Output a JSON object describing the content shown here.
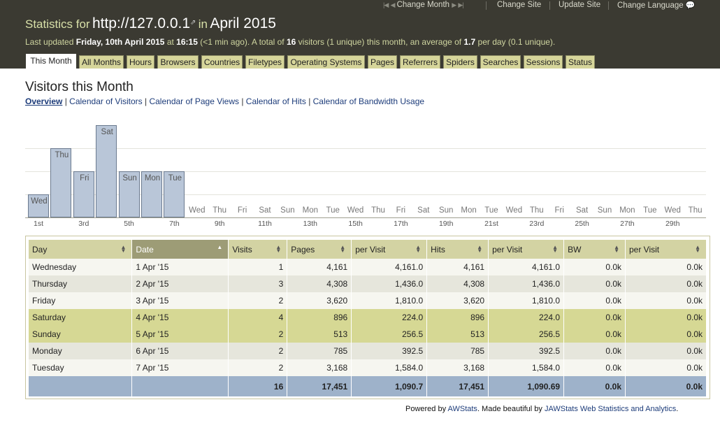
{
  "topmenu": {
    "change_month": "Change Month",
    "change_site": "Change Site",
    "update_site": "Update Site",
    "change_language": "Change Language"
  },
  "title": {
    "prefix": "Statistics for",
    "site": "http://127.0.0.1",
    "middle": "in",
    "period": "April 2015"
  },
  "update": {
    "t1": "Last updated",
    "date": "Friday, 10th April 2015",
    "t2": "at",
    "time": "16:15",
    "t3": "(<1 min ago). A total of",
    "visitors": "16",
    "t4": "visitors (1 unique) this month, an average of",
    "avg": "1.7",
    "t5": "per day (0.1 unique)."
  },
  "tabs": [
    "This Month",
    "All Months",
    "Hours",
    "Browsers",
    "Countries",
    "Filetypes",
    "Operating Systems",
    "Pages",
    "Referrers",
    "Spiders",
    "Searches",
    "Sessions",
    "Status"
  ],
  "section": {
    "title": "Visitors this Month",
    "nav": [
      "Overview",
      "Calendar of Visitors",
      "Calendar of Page Views",
      "Calendar of Hits",
      "Calendar of Bandwidth Usage"
    ]
  },
  "chart_data": {
    "type": "bar",
    "categories": [
      "Wed",
      "Thu",
      "Fri",
      "Sat",
      "Sun",
      "Mon",
      "Tue",
      "Wed",
      "Thu",
      "Fri",
      "Sat",
      "Sun",
      "Mon",
      "Tue",
      "Wed",
      "Thu",
      "Fri",
      "Sat",
      "Sun",
      "Mon",
      "Tue",
      "Wed",
      "Thu",
      "Fri",
      "Sat",
      "Sun",
      "Mon",
      "Tue",
      "Wed",
      "Thu"
    ],
    "values": [
      1,
      3,
      2,
      4,
      2,
      2,
      2,
      0,
      0,
      0,
      0,
      0,
      0,
      0,
      0,
      0,
      0,
      0,
      0,
      0,
      0,
      0,
      0,
      0,
      0,
      0,
      0,
      0,
      0,
      0
    ],
    "tick_labels": [
      "1st",
      "3rd",
      "5th",
      "7th",
      "9th",
      "11th",
      "13th",
      "15th",
      "17th",
      "19th",
      "21st",
      "23rd",
      "25th",
      "27th",
      "29th"
    ],
    "ylim": [
      0,
      4
    ]
  },
  "table": {
    "headers": [
      "Day",
      "Date",
      "Visits",
      "Pages",
      "per Visit",
      "Hits",
      "per Visit",
      "BW",
      "per Visit"
    ],
    "rows": [
      [
        "Wednesday",
        "1 Apr '15",
        "1",
        "4,161",
        "4,161.0",
        "4,161",
        "4,161.0",
        "0.0k",
        "0.0k"
      ],
      [
        "Thursday",
        "2 Apr '15",
        "3",
        "4,308",
        "1,436.0",
        "4,308",
        "1,436.0",
        "0.0k",
        "0.0k"
      ],
      [
        "Friday",
        "3 Apr '15",
        "2",
        "3,620",
        "1,810.0",
        "3,620",
        "1,810.0",
        "0.0k",
        "0.0k"
      ],
      [
        "Saturday",
        "4 Apr '15",
        "4",
        "896",
        "224.0",
        "896",
        "224.0",
        "0.0k",
        "0.0k"
      ],
      [
        "Sunday",
        "5 Apr '15",
        "2",
        "513",
        "256.5",
        "513",
        "256.5",
        "0.0k",
        "0.0k"
      ],
      [
        "Monday",
        "6 Apr '15",
        "2",
        "785",
        "392.5",
        "785",
        "392.5",
        "0.0k",
        "0.0k"
      ],
      [
        "Tuesday",
        "7 Apr '15",
        "2",
        "3,168",
        "1,584.0",
        "3,168",
        "1,584.0",
        "0.0k",
        "0.0k"
      ]
    ],
    "totals": [
      "",
      "",
      "16",
      "17,451",
      "1,090.7",
      "17,451",
      "1,090.69",
      "0.0k",
      "0.0k"
    ]
  },
  "footer": {
    "t1": "Powered by",
    "awstats": "AWStats",
    "t2": ". Made beautiful by",
    "jawstats": "JAWStats Web Statistics and Analytics",
    "t3": "."
  },
  "colors": {
    "header_bg": "#3b3a32",
    "tab_bg": "#d6d59a",
    "bar_fill": "#b9c6d8",
    "weekend_row": "#d6d894",
    "total_row": "#9eb2ca"
  }
}
